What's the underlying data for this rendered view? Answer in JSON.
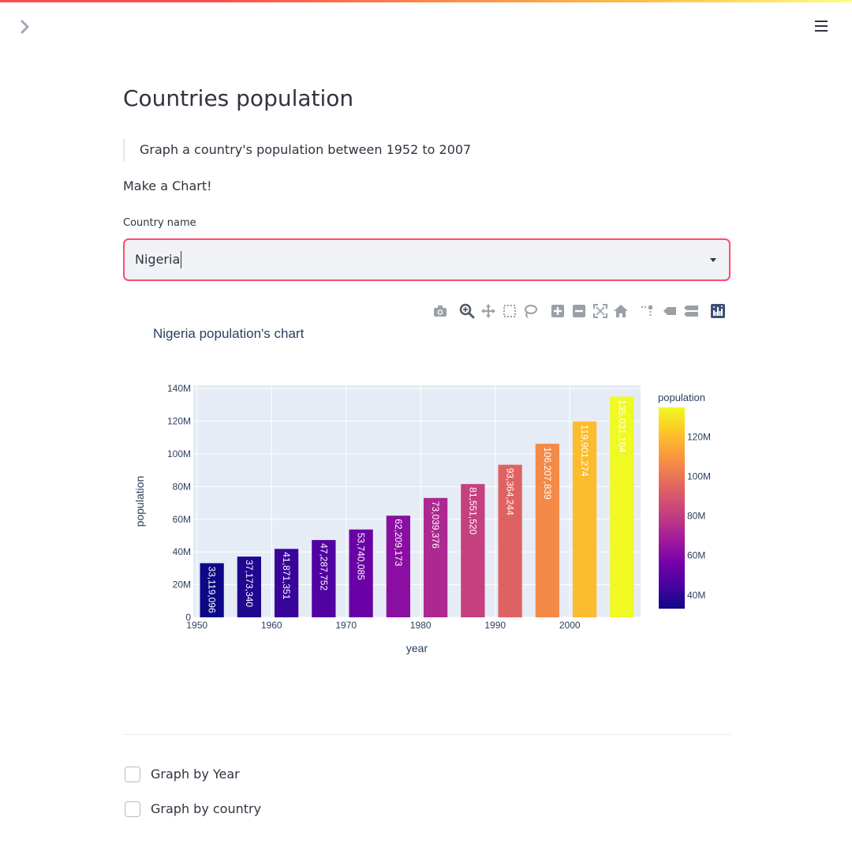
{
  "app": {
    "title": "Countries population",
    "description": "Graph a country's population between 1952 to 2007",
    "instruction": "Make a Chart!"
  },
  "icons": {
    "sidebar_toggle": "chevron-right-icon",
    "menu": "hamburger-menu-icon",
    "dropdown": "caret-down-icon"
  },
  "colors": {
    "accent": "#ff4b4b",
    "focus_border": "#ff4b6e",
    "input_bg": "#f0f2f6",
    "plot_bg": "#e5ecf6"
  },
  "select": {
    "label": "Country name",
    "value": "Nigeria"
  },
  "modebar": {
    "buttons": [
      "camera-icon",
      "zoom-icon",
      "pan-icon",
      "box-select-icon",
      "lasso-select-icon",
      "zoom-in-icon",
      "zoom-out-icon",
      "autoscale-icon",
      "reset-axes-icon",
      "spike-lines-icon",
      "hover-closest-icon",
      "hover-compare-icon",
      "plotly-logo-icon"
    ]
  },
  "checkboxes": [
    {
      "label": "Graph by Year",
      "checked": false
    },
    {
      "label": "Graph by country",
      "checked": false
    }
  ],
  "chart_data": {
    "type": "bar",
    "title": "Nigeria population's chart",
    "xlabel": "year",
    "ylabel": "population",
    "x": [
      1952,
      1957,
      1962,
      1967,
      1972,
      1977,
      1982,
      1987,
      1992,
      1997,
      2002,
      2007
    ],
    "values": [
      33119096,
      37173340,
      41871351,
      47287752,
      53740085,
      62209173,
      73039376,
      81551520,
      93364244,
      106207839,
      119901274,
      135031164
    ],
    "value_labels": [
      "33,119,096",
      "37,173,340",
      "41,871,351",
      "47,287,752",
      "53,740,085",
      "62,209,173",
      "73,039,376",
      "81,551,520",
      "93,364,244",
      "106,207,839",
      "119,901,274",
      "135,031,164"
    ],
    "xlim": [
      1949.5,
      2009.5
    ],
    "ylim": [
      0,
      142000000
    ],
    "x_ticks": [
      1950,
      1960,
      1970,
      1980,
      1990,
      2000
    ],
    "x_tick_labels": [
      "1950",
      "1960",
      "1970",
      "1980",
      "1990",
      "2000"
    ],
    "y_ticks": [
      0,
      20000000,
      40000000,
      60000000,
      80000000,
      100000000,
      120000000,
      140000000
    ],
    "y_tick_labels": [
      "0",
      "20M",
      "40M",
      "60M",
      "80M",
      "100M",
      "120M",
      "140M"
    ],
    "grid": true,
    "colorscale": "plasma",
    "colorbar": {
      "title": "population",
      "range": [
        33119096,
        135031164
      ],
      "ticks": [
        40000000,
        60000000,
        80000000,
        100000000,
        120000000
      ],
      "tick_labels": [
        "40M",
        "60M",
        "80M",
        "100M",
        "120M"
      ]
    }
  }
}
